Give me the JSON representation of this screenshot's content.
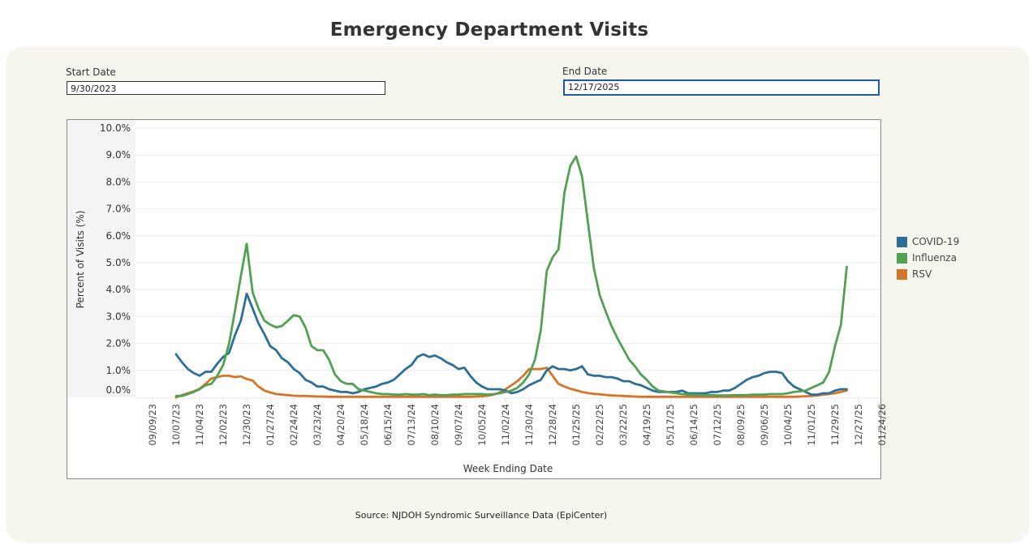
{
  "page": {
    "title": "Emergency Department Visits",
    "source": "Source: NJDOH Syndromic Surveillance Data (EpiCenter)"
  },
  "filters": {
    "start_label": "Start Date",
    "start_value": "9/30/2023",
    "end_label": "End Date",
    "end_value": "12/17/2025"
  },
  "colors": {
    "covid": "#2e6f97",
    "influenza": "#52a052",
    "rsv": "#d4762a"
  },
  "chart_data": {
    "type": "line",
    "title": "Emergency Department Visits",
    "xlabel": "Week Ending Date",
    "ylabel": "Percent of Visits (%)",
    "ylim": [
      0,
      10
    ],
    "y_ticks": [
      "0.0%",
      "1.0%",
      "2.0%",
      "3.0%",
      "4.0%",
      "5.0%",
      "6.0%",
      "7.0%",
      "8.0%",
      "9.0%",
      "10.0%"
    ],
    "x_ticks": [
      "09/09/23",
      "10/07/23",
      "11/04/23",
      "12/02/23",
      "12/30/23",
      "01/27/24",
      "02/24/24",
      "03/23/24",
      "04/20/24",
      "05/18/24",
      "06/15/24",
      "07/13/24",
      "08/10/24",
      "09/07/24",
      "10/05/24",
      "11/02/24",
      "11/30/24",
      "12/28/24",
      "01/25/25",
      "02/22/25",
      "03/22/25",
      "04/19/25",
      "05/17/25",
      "06/14/25",
      "07/12/25",
      "08/09/25",
      "09/06/25",
      "10/04/25",
      "11/01/25",
      "11/29/25",
      "12/27/25",
      "01/24/26"
    ],
    "x_start": "10/07/23",
    "x_interval": "weekly",
    "grid": true,
    "legend_position": "right",
    "series": [
      {
        "name": "COVID-19",
        "color": "#2e6f97",
        "values": [
          1.6,
          1.3,
          1.05,
          0.9,
          0.8,
          0.95,
          0.95,
          1.25,
          1.5,
          1.65,
          2.3,
          2.85,
          3.85,
          3.3,
          2.75,
          2.35,
          1.9,
          1.75,
          1.45,
          1.3,
          1.05,
          0.9,
          0.65,
          0.55,
          0.4,
          0.4,
          0.3,
          0.25,
          0.2,
          0.2,
          0.15,
          0.2,
          0.3,
          0.35,
          0.4,
          0.5,
          0.55,
          0.65,
          0.85,
          1.05,
          1.2,
          1.5,
          1.6,
          1.5,
          1.55,
          1.45,
          1.3,
          1.2,
          1.05,
          1.1,
          0.8,
          0.55,
          0.4,
          0.3,
          0.3,
          0.3,
          0.25,
          0.15,
          0.2,
          0.3,
          0.45,
          0.55,
          0.65,
          1.0,
          1.15,
          1.05,
          1.05,
          1.0,
          1.05,
          1.15,
          0.85,
          0.8,
          0.8,
          0.75,
          0.75,
          0.7,
          0.6,
          0.6,
          0.5,
          0.45,
          0.35,
          0.25,
          0.2,
          0.2,
          0.2,
          0.2,
          0.25,
          0.15,
          0.15,
          0.15,
          0.15,
          0.2,
          0.2,
          0.25,
          0.25,
          0.35,
          0.5,
          0.65,
          0.75,
          0.8,
          0.9,
          0.95,
          0.95,
          0.9,
          0.6,
          0.4,
          0.3,
          0.2,
          0.1,
          0.1,
          0.15,
          0.15,
          0.25,
          0.3,
          0.3
        ]
      },
      {
        "name": "Influenza",
        "color": "#52a052",
        "values": [
          0.05,
          0.05,
          0.12,
          0.2,
          0.3,
          0.45,
          0.5,
          0.8,
          1.2,
          2.0,
          3.2,
          4.5,
          5.7,
          3.9,
          3.3,
          2.85,
          2.7,
          2.6,
          2.65,
          2.85,
          3.05,
          3.0,
          2.6,
          1.9,
          1.75,
          1.75,
          1.4,
          0.85,
          0.6,
          0.5,
          0.5,
          0.3,
          0.25,
          0.2,
          0.15,
          0.12,
          0.12,
          0.1,
          0.1,
          0.12,
          0.1,
          0.1,
          0.12,
          0.08,
          0.1,
          0.08,
          0.08,
          0.1,
          0.1,
          0.12,
          0.12,
          0.12,
          0.12,
          0.1,
          0.12,
          0.15,
          0.2,
          0.25,
          0.35,
          0.55,
          0.85,
          1.4,
          2.5,
          4.7,
          5.2,
          5.5,
          7.6,
          8.6,
          8.95,
          8.2,
          6.5,
          4.8,
          3.8,
          3.2,
          2.65,
          2.2,
          1.8,
          1.4,
          1.15,
          0.85,
          0.65,
          0.4,
          0.25,
          0.22,
          0.18,
          0.15,
          0.12,
          0.1,
          0.1,
          0.08,
          0.08,
          0.08,
          0.07,
          0.07,
          0.07,
          0.08,
          0.08,
          0.08,
          0.1,
          0.1,
          0.1,
          0.12,
          0.12,
          0.12,
          0.15,
          0.2,
          0.22,
          0.25,
          0.35,
          0.45,
          0.55,
          0.95,
          1.9,
          2.7,
          4.85
        ]
      },
      {
        "name": "RSV",
        "color": "#d4762a",
        "values": [
          0.0,
          0.08,
          0.15,
          0.22,
          0.32,
          0.5,
          0.7,
          0.75,
          0.8,
          0.8,
          0.75,
          0.78,
          0.68,
          0.62,
          0.4,
          0.25,
          0.18,
          0.12,
          0.1,
          0.08,
          0.06,
          0.05,
          0.05,
          0.04,
          0.03,
          0.03,
          0.02,
          0.02,
          0.02,
          0.02,
          0.02,
          0.02,
          0.02,
          0.02,
          0.02,
          0.02,
          0.02,
          0.02,
          0.02,
          0.02,
          0.02,
          0.02,
          0.02,
          0.02,
          0.02,
          0.02,
          0.02,
          0.02,
          0.02,
          0.02,
          0.02,
          0.03,
          0.04,
          0.06,
          0.1,
          0.18,
          0.3,
          0.45,
          0.6,
          0.8,
          1.05,
          1.05,
          1.05,
          1.1,
          0.8,
          0.5,
          0.4,
          0.32,
          0.26,
          0.2,
          0.16,
          0.13,
          0.11,
          0.09,
          0.07,
          0.06,
          0.05,
          0.04,
          0.03,
          0.02,
          0.02,
          0.02,
          0.02,
          0.02,
          0.02,
          0.02,
          0.02,
          0.02,
          0.02,
          0.02,
          0.02,
          0.02,
          0.02,
          0.02,
          0.02,
          0.02,
          0.02,
          0.02,
          0.02,
          0.02,
          0.02,
          0.02,
          0.02,
          0.02,
          0.02,
          0.02,
          0.03,
          0.04,
          0.05,
          0.07,
          0.1,
          0.12,
          0.15,
          0.2,
          0.25
        ]
      }
    ]
  }
}
